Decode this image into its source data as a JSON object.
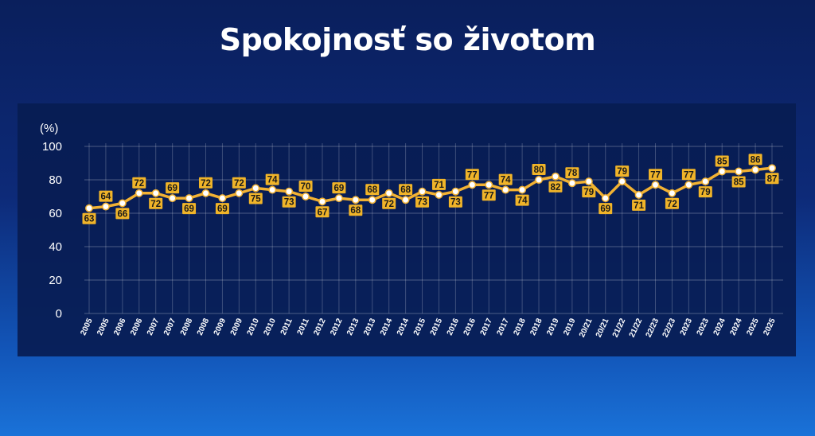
{
  "title": "Spokojnosť so životom",
  "chart_data": {
    "type": "line",
    "ylabel": "(%)",
    "ylim": [
      0,
      100
    ],
    "yticks": [
      0,
      20,
      40,
      60,
      80,
      100
    ],
    "grid": true,
    "line_color": "#f2b233",
    "label_bg": "#f0b429",
    "categories": [
      "2005",
      "2005",
      "2006",
      "2006",
      "2007",
      "2007",
      "2008",
      "2008",
      "2009",
      "2009",
      "2010",
      "2010",
      "2011",
      "2011",
      "2012",
      "2012",
      "2013",
      "2013",
      "2014",
      "2014",
      "2015",
      "2015",
      "2016",
      "2016",
      "2017",
      "2017",
      "2018",
      "2018",
      "2019",
      "2019",
      "20/21",
      "20/21",
      "21/22",
      "21/22",
      "22/23",
      "22/23",
      "2023",
      "2023",
      "2024",
      "2024",
      "2025",
      "2025"
    ],
    "values": [
      63,
      64,
      66,
      72,
      72,
      69,
      69,
      72,
      69,
      72,
      75,
      74,
      73,
      70,
      67,
      69,
      68,
      68,
      72,
      68,
      73,
      71,
      73,
      77,
      77,
      74,
      74,
      80,
      82,
      78,
      79,
      69,
      79,
      71,
      77,
      72,
      77,
      79,
      85,
      85,
      86,
      87
    ],
    "label_position": [
      "below",
      "above",
      "below",
      "above",
      "below",
      "above",
      "below",
      "above",
      "below",
      "above",
      "below",
      "above",
      "below",
      "above",
      "below",
      "above",
      "below",
      "above",
      "below",
      "above",
      "below",
      "above",
      "below",
      "above",
      "below",
      "above",
      "below",
      "above",
      "below",
      "above",
      "below",
      "below",
      "above",
      "below",
      "above",
      "below",
      "above",
      "below",
      "above",
      "below",
      "above",
      "below"
    ]
  }
}
